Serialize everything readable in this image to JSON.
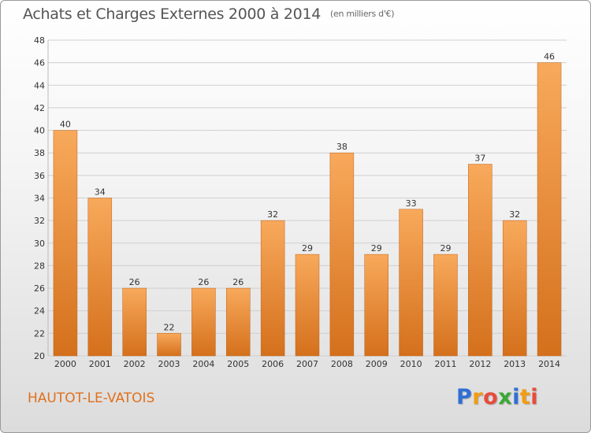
{
  "header": {
    "title": "Achats et Charges Externes 2000 à 2014",
    "unit": "(en milliers d'€)"
  },
  "footer": {
    "commune": "HAUTOT-LE-VATOIS",
    "logo_letters": [
      "P",
      "r",
      "o",
      "x",
      "i",
      "t",
      "i"
    ],
    "logo_colors": [
      "#2f6fd6",
      "#f39c12",
      "#e74c3c",
      "#3aa935",
      "#2f6fd6",
      "#f39c12",
      "#e74c3c"
    ]
  },
  "colors": {
    "bar_top": "#f8a95b",
    "bar_bottom": "#d4701c",
    "grid": "#cfcfcf",
    "axis_text": "#333333"
  },
  "chart_data": {
    "type": "bar",
    "title": "Achats et Charges Externes 2000 à 2014",
    "subtitle": "(en milliers d'€)",
    "categories": [
      "2000",
      "2001",
      "2002",
      "2003",
      "2004",
      "2005",
      "2006",
      "2007",
      "2008",
      "2009",
      "2010",
      "2011",
      "2012",
      "2013",
      "2014"
    ],
    "values": [
      40,
      34,
      26,
      22,
      26,
      26,
      32,
      29,
      38,
      29,
      33,
      29,
      37,
      32,
      46
    ],
    "ylim": [
      20,
      48
    ],
    "yticks": [
      20,
      22,
      24,
      26,
      28,
      30,
      32,
      34,
      36,
      38,
      40,
      42,
      44,
      46,
      48
    ],
    "xlabel": "",
    "ylabel": "",
    "grid": true
  }
}
